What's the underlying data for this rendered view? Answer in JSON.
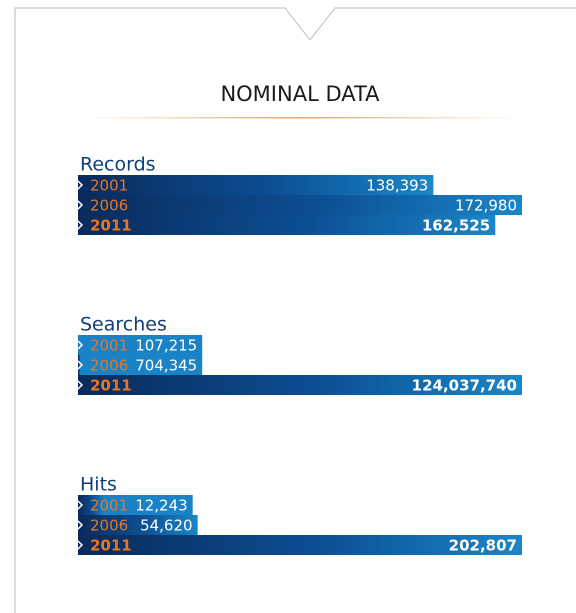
{
  "title": "NOMINAL DATA",
  "chart_data": [
    {
      "type": "bar",
      "title": "Records",
      "categories": [
        "2001",
        "2006",
        "2011"
      ],
      "values": [
        138393,
        172980,
        162525
      ],
      "value_labels": [
        "138,393",
        "172,980",
        "162,525"
      ]
    },
    {
      "type": "bar",
      "title": "Searches",
      "categories": [
        "2001",
        "2006",
        "2011"
      ],
      "values": [
        107215,
        704345,
        124037740
      ],
      "value_labels": [
        "107,215",
        "704,345",
        "124,037,740"
      ]
    },
    {
      "type": "bar",
      "title": "Hits",
      "categories": [
        "2001",
        "2006",
        "2011"
      ],
      "values": [
        12243,
        54620,
        202807
      ],
      "value_labels": [
        "12,243",
        "54,620",
        "202,807"
      ]
    }
  ]
}
